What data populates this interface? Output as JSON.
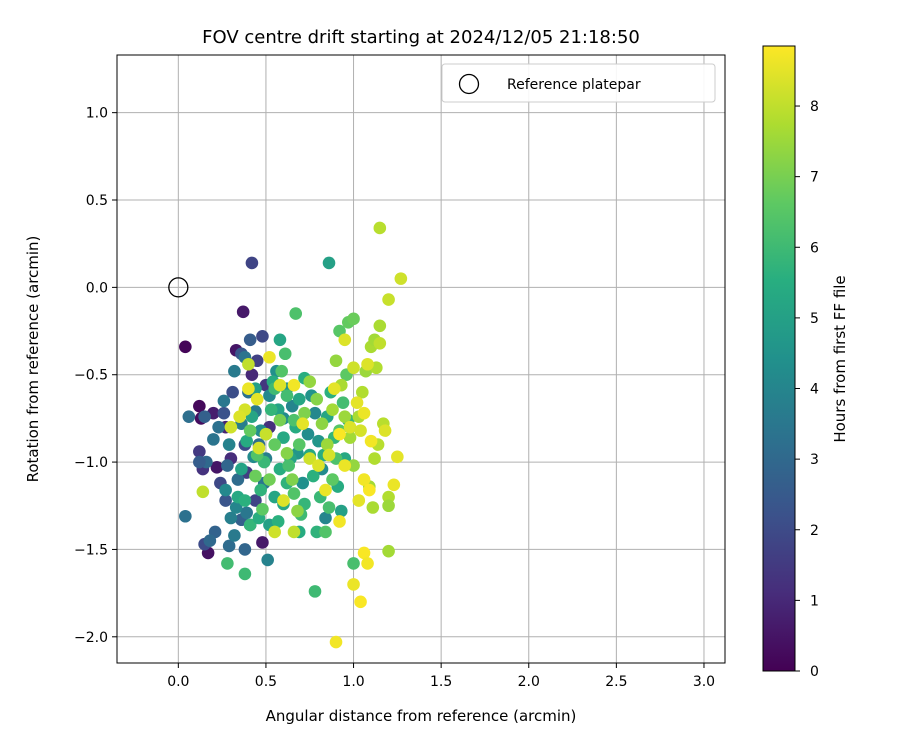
{
  "chart_data": {
    "type": "scatter",
    "title": "FOV centre drift starting at 2024/12/05 21:18:50",
    "xlabel": "Angular distance from reference (arcmin)",
    "ylabel": "Rotation from reference (arcmin)",
    "xlim": [
      -0.35,
      3.12
    ],
    "ylim": [
      -2.15,
      1.33
    ],
    "xticks": [
      0.0,
      0.5,
      1.0,
      1.5,
      2.0,
      2.5,
      3.0
    ],
    "xtick_labels": [
      "0.0",
      "0.5",
      "1.0",
      "1.5",
      "2.0",
      "2.5",
      "3.0"
    ],
    "yticks": [
      -2.0,
      -1.5,
      -1.0,
      -0.5,
      0.0,
      0.5,
      1.0
    ],
    "ytick_labels": [
      "−2.0",
      "−1.5",
      "−1.0",
      "−0.5",
      "0.0",
      "0.5",
      "1.0"
    ],
    "grid": true,
    "legend_position": "top-right",
    "colormap": "viridis",
    "colorbar": {
      "label": "Hours from first FF file",
      "min": 0,
      "max": 8.85,
      "ticks": [
        0,
        1,
        2,
        3,
        4,
        5,
        6,
        7,
        8
      ],
      "tick_labels": [
        "0",
        "1",
        "2",
        "3",
        "4",
        "5",
        "6",
        "7",
        "8"
      ]
    },
    "reference": {
      "label": "Reference platepar",
      "x": 0.0,
      "y": 0.0,
      "marker": "open-circle"
    },
    "points": [
      [
        0.04,
        -0.34,
        0.1
      ],
      [
        0.12,
        -0.68,
        0.2
      ],
      [
        0.13,
        -0.75,
        0.3
      ],
      [
        0.33,
        -0.36,
        0.5
      ],
      [
        0.37,
        -0.14,
        0.6
      ],
      [
        0.2,
        -0.72,
        0.7
      ],
      [
        0.22,
        -1.03,
        0.5
      ],
      [
        0.17,
        -1.52,
        0.4
      ],
      [
        0.48,
        -1.46,
        0.6
      ],
      [
        0.27,
        -0.8,
        0.9
      ],
      [
        0.42,
        -0.5,
        1.0
      ],
      [
        0.3,
        -0.98,
        1.1
      ],
      [
        0.42,
        0.14,
        1.8
      ],
      [
        0.48,
        -0.28,
        1.9
      ],
      [
        0.31,
        -0.6,
        2.1
      ],
      [
        0.12,
        -0.94,
        1.5
      ],
      [
        0.14,
        -1.04,
        1.3
      ],
      [
        0.15,
        -1.47,
        2.0
      ],
      [
        0.36,
        -0.38,
        2.4
      ],
      [
        0.41,
        -0.3,
        2.6
      ],
      [
        0.26,
        -0.72,
        2.2
      ],
      [
        0.38,
        -0.9,
        2.0
      ],
      [
        0.44,
        -1.22,
        1.8
      ],
      [
        0.39,
        -1.06,
        1.6
      ],
      [
        0.45,
        -0.42,
        1.7
      ],
      [
        0.5,
        -0.56,
        1.4
      ],
      [
        0.52,
        -0.8,
        1.2
      ],
      [
        0.24,
        -1.12,
        1.9
      ],
      [
        0.27,
        -1.22,
        2.3
      ],
      [
        0.36,
        -1.33,
        2.7
      ],
      [
        0.21,
        -1.4,
        2.8
      ],
      [
        0.18,
        -1.45,
        3.0
      ],
      [
        0.29,
        -1.48,
        3.1
      ],
      [
        0.38,
        -1.5,
        2.9
      ],
      [
        0.41,
        -1.36,
        2.5
      ],
      [
        0.15,
        -0.74,
        2.7
      ],
      [
        0.06,
        -0.74,
        3.2
      ],
      [
        0.04,
        -1.31,
        3.3
      ],
      [
        0.16,
        -1.0,
        3.0
      ],
      [
        0.12,
        -1.0,
        2.6
      ],
      [
        0.2,
        -0.87,
        3.4
      ],
      [
        0.26,
        -0.65,
        3.5
      ],
      [
        0.32,
        -0.48,
        3.6
      ],
      [
        0.36,
        -0.78,
        3.7
      ],
      [
        0.38,
        -0.4,
        3.4
      ],
      [
        0.4,
        -0.6,
        3.3
      ],
      [
        0.44,
        -0.71,
        3.6
      ],
      [
        0.46,
        -0.9,
        3.2
      ],
      [
        0.5,
        -0.98,
        3.8
      ],
      [
        0.49,
        -1.12,
        3.5
      ],
      [
        0.51,
        -1.56,
        3.9
      ],
      [
        0.3,
        -1.32,
        3.8
      ],
      [
        0.32,
        -1.42,
        3.6
      ],
      [
        0.39,
        -1.29,
        3.5
      ],
      [
        0.34,
        -1.1,
        3.1
      ],
      [
        0.28,
        -1.02,
        2.9
      ],
      [
        0.23,
        -0.8,
        3.3
      ],
      [
        0.29,
        -0.9,
        3.9
      ],
      [
        0.27,
        -1.16,
        4.1
      ],
      [
        0.33,
        -1.26,
        4.0
      ],
      [
        0.43,
        -0.97,
        4.2
      ],
      [
        0.47,
        -0.82,
        4.3
      ],
      [
        0.52,
        -0.62,
        4.1
      ],
      [
        0.56,
        -0.48,
        4.4
      ],
      [
        0.6,
        -0.75,
        4.2
      ],
      [
        0.62,
        -0.58,
        4.5
      ],
      [
        0.65,
        -0.68,
        4.0
      ],
      [
        0.68,
        -0.95,
        4.6
      ],
      [
        0.71,
        -1.12,
        4.4
      ],
      [
        0.74,
        -0.84,
        4.3
      ],
      [
        0.76,
        -0.62,
        4.5
      ],
      [
        0.78,
        -0.72,
        4.1
      ],
      [
        0.8,
        -0.88,
        4.6
      ],
      [
        0.82,
        -1.04,
        4.2
      ],
      [
        0.84,
        -1.32,
        4.0
      ],
      [
        0.86,
        0.14,
        5.0
      ],
      [
        0.58,
        -0.3,
        5.2
      ],
      [
        0.54,
        -0.54,
        5.4
      ],
      [
        0.57,
        -0.7,
        5.1
      ],
      [
        0.6,
        -0.86,
        5.3
      ],
      [
        0.58,
        -1.04,
        5.5
      ],
      [
        0.55,
        -1.2,
        5.2
      ],
      [
        0.52,
        -1.36,
        5.0
      ],
      [
        0.57,
        -1.34,
        5.6
      ],
      [
        0.6,
        -1.24,
        5.3
      ],
      [
        0.62,
        -1.12,
        5.7
      ],
      [
        0.64,
        -0.98,
        5.1
      ],
      [
        0.67,
        -0.8,
        5.4
      ],
      [
        0.69,
        -0.64,
        5.2
      ],
      [
        0.72,
        -0.52,
        5.5
      ],
      [
        0.75,
        -0.96,
        5.3
      ],
      [
        0.77,
        -1.08,
        5.6
      ],
      [
        0.72,
        -1.24,
        5.8
      ],
      [
        0.69,
        -1.4,
        5.4
      ],
      [
        0.79,
        -1.4,
        5.7
      ],
      [
        0.81,
        -1.2,
        5.9
      ],
      [
        0.83,
        -0.96,
        5.5
      ],
      [
        0.85,
        -0.74,
        5.2
      ],
      [
        0.87,
        -0.6,
        5.6
      ],
      [
        0.89,
        -0.86,
        5.8
      ],
      [
        0.91,
        -1.14,
        5.4
      ],
      [
        0.93,
        -1.28,
        5.0
      ],
      [
        0.95,
        -0.98,
        5.3
      ],
      [
        0.97,
        -0.76,
        5.9
      ],
      [
        0.44,
        -0.58,
        5.0
      ],
      [
        0.42,
        -0.74,
        5.2
      ],
      [
        0.39,
        -0.88,
        5.4
      ],
      [
        0.36,
        -1.04,
        5.1
      ],
      [
        0.34,
        -1.2,
        5.3
      ],
      [
        0.38,
        -1.22,
        5.6
      ],
      [
        0.41,
        -1.36,
        5.8
      ],
      [
        0.46,
        -1.32,
        5.5
      ],
      [
        0.47,
        -1.16,
        5.7
      ],
      [
        0.49,
        -1.0,
        5.9
      ],
      [
        0.5,
        -0.84,
        5.6
      ],
      [
        0.53,
        -0.7,
        5.8
      ],
      [
        0.55,
        -0.58,
        6.0
      ],
      [
        0.28,
        -1.58,
        6.1
      ],
      [
        0.38,
        -1.64,
        6.0
      ],
      [
        0.67,
        -0.15,
        6.3
      ],
      [
        0.61,
        -0.38,
        6.2
      ],
      [
        0.59,
        -0.48,
        6.4
      ],
      [
        0.62,
        -0.62,
        6.1
      ],
      [
        0.66,
        -0.76,
        6.3
      ],
      [
        0.69,
        -0.9,
        6.5
      ],
      [
        0.63,
        -1.02,
        6.2
      ],
      [
        0.66,
        -1.18,
        6.4
      ],
      [
        0.7,
        -1.3,
        6.0
      ],
      [
        0.78,
        -1.74,
        6.0
      ],
      [
        0.84,
        -1.4,
        6.4
      ],
      [
        0.86,
        -1.26,
        6.2
      ],
      [
        0.88,
        -1.1,
        6.6
      ],
      [
        0.9,
        -0.98,
        6.3
      ],
      [
        0.92,
        -0.82,
        6.5
      ],
      [
        0.94,
        -0.66,
        6.1
      ],
      [
        0.96,
        -0.5,
        6.6
      ],
      [
        0.92,
        -0.25,
        6.5
      ],
      [
        0.97,
        -0.2,
        6.7
      ],
      [
        1.0,
        -0.18,
        6.8
      ],
      [
        1.0,
        -1.58,
        6.2
      ],
      [
        0.48,
        -1.27,
        6.6
      ],
      [
        0.45,
        -0.96,
        6.4
      ],
      [
        0.41,
        -0.82,
        6.7
      ],
      [
        0.44,
        -1.08,
        6.8
      ],
      [
        0.52,
        -1.1,
        6.9
      ],
      [
        0.55,
        -0.9,
        6.7
      ],
      [
        0.58,
        -0.76,
        7.0
      ],
      [
        0.62,
        -0.95,
        7.2
      ],
      [
        0.65,
        -1.1,
        7.1
      ],
      [
        0.68,
        -1.28,
        7.3
      ],
      [
        0.72,
        -0.72,
        7.1
      ],
      [
        0.75,
        -0.54,
        7.4
      ],
      [
        0.79,
        -0.64,
        7.2
      ],
      [
        0.82,
        -0.78,
        7.3
      ],
      [
        0.85,
        -0.9,
        7.5
      ],
      [
        0.88,
        -0.7,
        7.6
      ],
      [
        0.9,
        -0.42,
        7.4
      ],
      [
        0.93,
        -0.56,
        7.7
      ],
      [
        0.95,
        -0.74,
        7.5
      ],
      [
        0.98,
        -0.86,
        7.6
      ],
      [
        1.0,
        -1.02,
        7.4
      ],
      [
        1.03,
        -0.74,
        7.7
      ],
      [
        1.05,
        -0.6,
        7.8
      ],
      [
        1.07,
        -0.48,
        7.5
      ],
      [
        1.1,
        -0.34,
        7.7
      ],
      [
        1.12,
        -0.3,
        7.6
      ],
      [
        1.13,
        -0.46,
        7.8
      ],
      [
        1.14,
        -0.9,
        7.9
      ],
      [
        1.15,
        -0.22,
        7.7
      ],
      [
        1.17,
        -0.78,
        7.9
      ],
      [
        1.12,
        -0.98,
        7.8
      ],
      [
        1.09,
        -1.14,
        7.6
      ],
      [
        1.11,
        -1.26,
        7.7
      ],
      [
        1.2,
        -1.2,
        7.8
      ],
      [
        1.2,
        -1.25,
        7.5
      ],
      [
        1.2,
        -1.51,
        7.6
      ],
      [
        1.15,
        0.34,
        7.9
      ],
      [
        1.2,
        -0.07,
        8.1
      ],
      [
        1.27,
        0.05,
        8.2
      ],
      [
        0.4,
        -0.44,
        8.0
      ],
      [
        0.38,
        -0.7,
        8.3
      ],
      [
        0.45,
        -0.64,
        8.5
      ],
      [
        0.52,
        -0.4,
        8.6
      ],
      [
        0.58,
        -0.56,
        8.4
      ],
      [
        0.66,
        -0.56,
        8.7
      ],
      [
        0.71,
        -0.78,
        8.5
      ],
      [
        0.75,
        -0.98,
        8.2
      ],
      [
        0.8,
        -1.02,
        8.4
      ],
      [
        0.84,
        -1.16,
        8.6
      ],
      [
        0.86,
        -0.96,
        8.3
      ],
      [
        0.89,
        -0.58,
        8.5
      ],
      [
        0.92,
        -0.84,
        8.8
      ],
      [
        0.95,
        -1.02,
        8.6
      ],
      [
        0.98,
        -0.8,
        8.4
      ],
      [
        1.0,
        -0.46,
        8.2
      ],
      [
        1.02,
        -0.66,
        8.5
      ],
      [
        1.04,
        -0.82,
        8.3
      ],
      [
        1.06,
        -0.72,
        8.6
      ],
      [
        1.08,
        -0.44,
        8.4
      ],
      [
        1.06,
        -1.1,
        8.7
      ],
      [
        1.09,
        -1.16,
        8.8
      ],
      [
        1.03,
        -1.22,
        8.5
      ],
      [
        0.92,
        -1.34,
        8.7
      ],
      [
        1.06,
        -1.52,
        8.8
      ],
      [
        1.08,
        -1.58,
        8.7
      ],
      [
        1.0,
        -1.7,
        8.6
      ],
      [
        1.04,
        -1.8,
        8.8
      ],
      [
        0.9,
        -2.03,
        8.7
      ],
      [
        0.55,
        -1.4,
        8.2
      ],
      [
        0.6,
        -1.22,
        8.4
      ],
      [
        0.5,
        -0.84,
        8.1
      ],
      [
        0.46,
        -0.92,
        8.3
      ],
      [
        0.4,
        -0.58,
        8.6
      ],
      [
        0.35,
        -0.74,
        8.4
      ],
      [
        0.3,
        -0.8,
        8.2
      ],
      [
        0.14,
        -1.17,
        8.0
      ],
      [
        0.66,
        -1.4,
        8.0
      ],
      [
        1.25,
        -0.97,
        8.5
      ],
      [
        1.23,
        -1.13,
        8.6
      ],
      [
        1.15,
        -0.32,
        8.0
      ],
      [
        1.18,
        -0.82,
        8.4
      ],
      [
        1.1,
        -0.88,
        8.7
      ],
      [
        0.95,
        -0.3,
        8.4
      ]
    ]
  }
}
